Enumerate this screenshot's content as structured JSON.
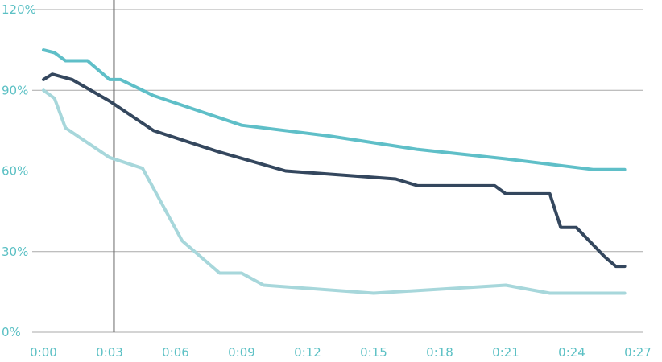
{
  "chart_data": {
    "type": "line",
    "title": "",
    "xlabel": "",
    "ylabel": "",
    "x_ticks": [
      "0:00",
      "0:03",
      "0:06",
      "0:09",
      "0:12",
      "0:15",
      "0:18",
      "0:21",
      "0:24",
      "0:27"
    ],
    "y_ticks": [
      "0%",
      "30%",
      "60%",
      "90%",
      "120%"
    ],
    "xlim": [
      0,
      27
    ],
    "ylim": [
      0,
      120
    ],
    "grid": true,
    "vertical_marker_x": 3.2,
    "series": [
      {
        "color": "#5fbfc8",
        "points": [
          [
            0,
            105
          ],
          [
            0.5,
            104
          ],
          [
            1,
            101
          ],
          [
            2,
            101
          ],
          [
            3,
            94
          ],
          [
            3.5,
            94
          ],
          [
            5,
            88
          ],
          [
            9,
            77
          ],
          [
            13,
            73
          ],
          [
            17,
            68
          ],
          [
            21,
            64.5
          ],
          [
            25,
            60.5
          ],
          [
            26.4,
            60.5
          ]
        ]
      },
      {
        "color": "#34475e",
        "points": [
          [
            0,
            94
          ],
          [
            0.4,
            96
          ],
          [
            1.3,
            94
          ],
          [
            3,
            86
          ],
          [
            5,
            75
          ],
          [
            8,
            67
          ],
          [
            11,
            60
          ],
          [
            16,
            57
          ],
          [
            17,
            54.5
          ],
          [
            20.5,
            54.5
          ],
          [
            21,
            51.5
          ],
          [
            23,
            51.5
          ],
          [
            23.5,
            39
          ],
          [
            24.2,
            39
          ],
          [
            25.5,
            28
          ],
          [
            26,
            24.5
          ],
          [
            26.4,
            24.5
          ]
        ]
      },
      {
        "color": "#a7d7db",
        "points": [
          [
            0,
            90
          ],
          [
            0.5,
            87
          ],
          [
            1,
            76
          ],
          [
            3,
            65
          ],
          [
            4.5,
            61
          ],
          [
            6.3,
            34
          ],
          [
            8,
            22
          ],
          [
            9,
            22
          ],
          [
            10,
            17.5
          ],
          [
            15,
            14.5
          ],
          [
            21,
            17.5
          ],
          [
            23,
            14.5
          ],
          [
            26.4,
            14.5
          ]
        ]
      }
    ]
  }
}
